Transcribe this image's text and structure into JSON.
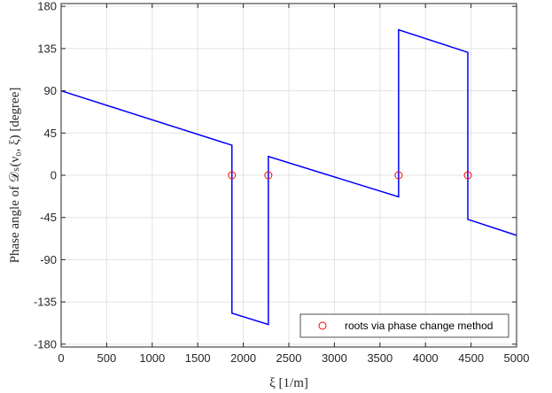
{
  "chart_data": {
    "type": "line",
    "xlabel": "ξ [1/m]",
    "ylabel": "Phase angle of 𝒟ₛ(ν₀, ξ) [degree]",
    "xlim": [
      0,
      5000
    ],
    "ylim": [
      -183,
      183
    ],
    "xticks": [
      0,
      500,
      1000,
      1500,
      2000,
      2500,
      3000,
      3500,
      4000,
      4500,
      5000
    ],
    "yticks": [
      180,
      135,
      90,
      45,
      0,
      -45,
      -90,
      -135,
      -180
    ],
    "grid": true,
    "legend_position": "bottom-right",
    "series": [
      {
        "type": "line",
        "color": "#0000ff",
        "x": [
          0,
          1875,
          1875,
          2275,
          2275,
          3705,
          3705,
          4465,
          4465,
          5000
        ],
        "y": [
          90,
          32,
          -147,
          -159,
          20,
          -23,
          155,
          131,
          -47,
          -64
        ]
      },
      {
        "name": "roots via phase change method",
        "type": "scatter",
        "marker": "circle-open",
        "color": "#ff0000",
        "x": [
          1875,
          2275,
          3705,
          4465
        ],
        "y": [
          0,
          0,
          0,
          0
        ]
      }
    ]
  }
}
